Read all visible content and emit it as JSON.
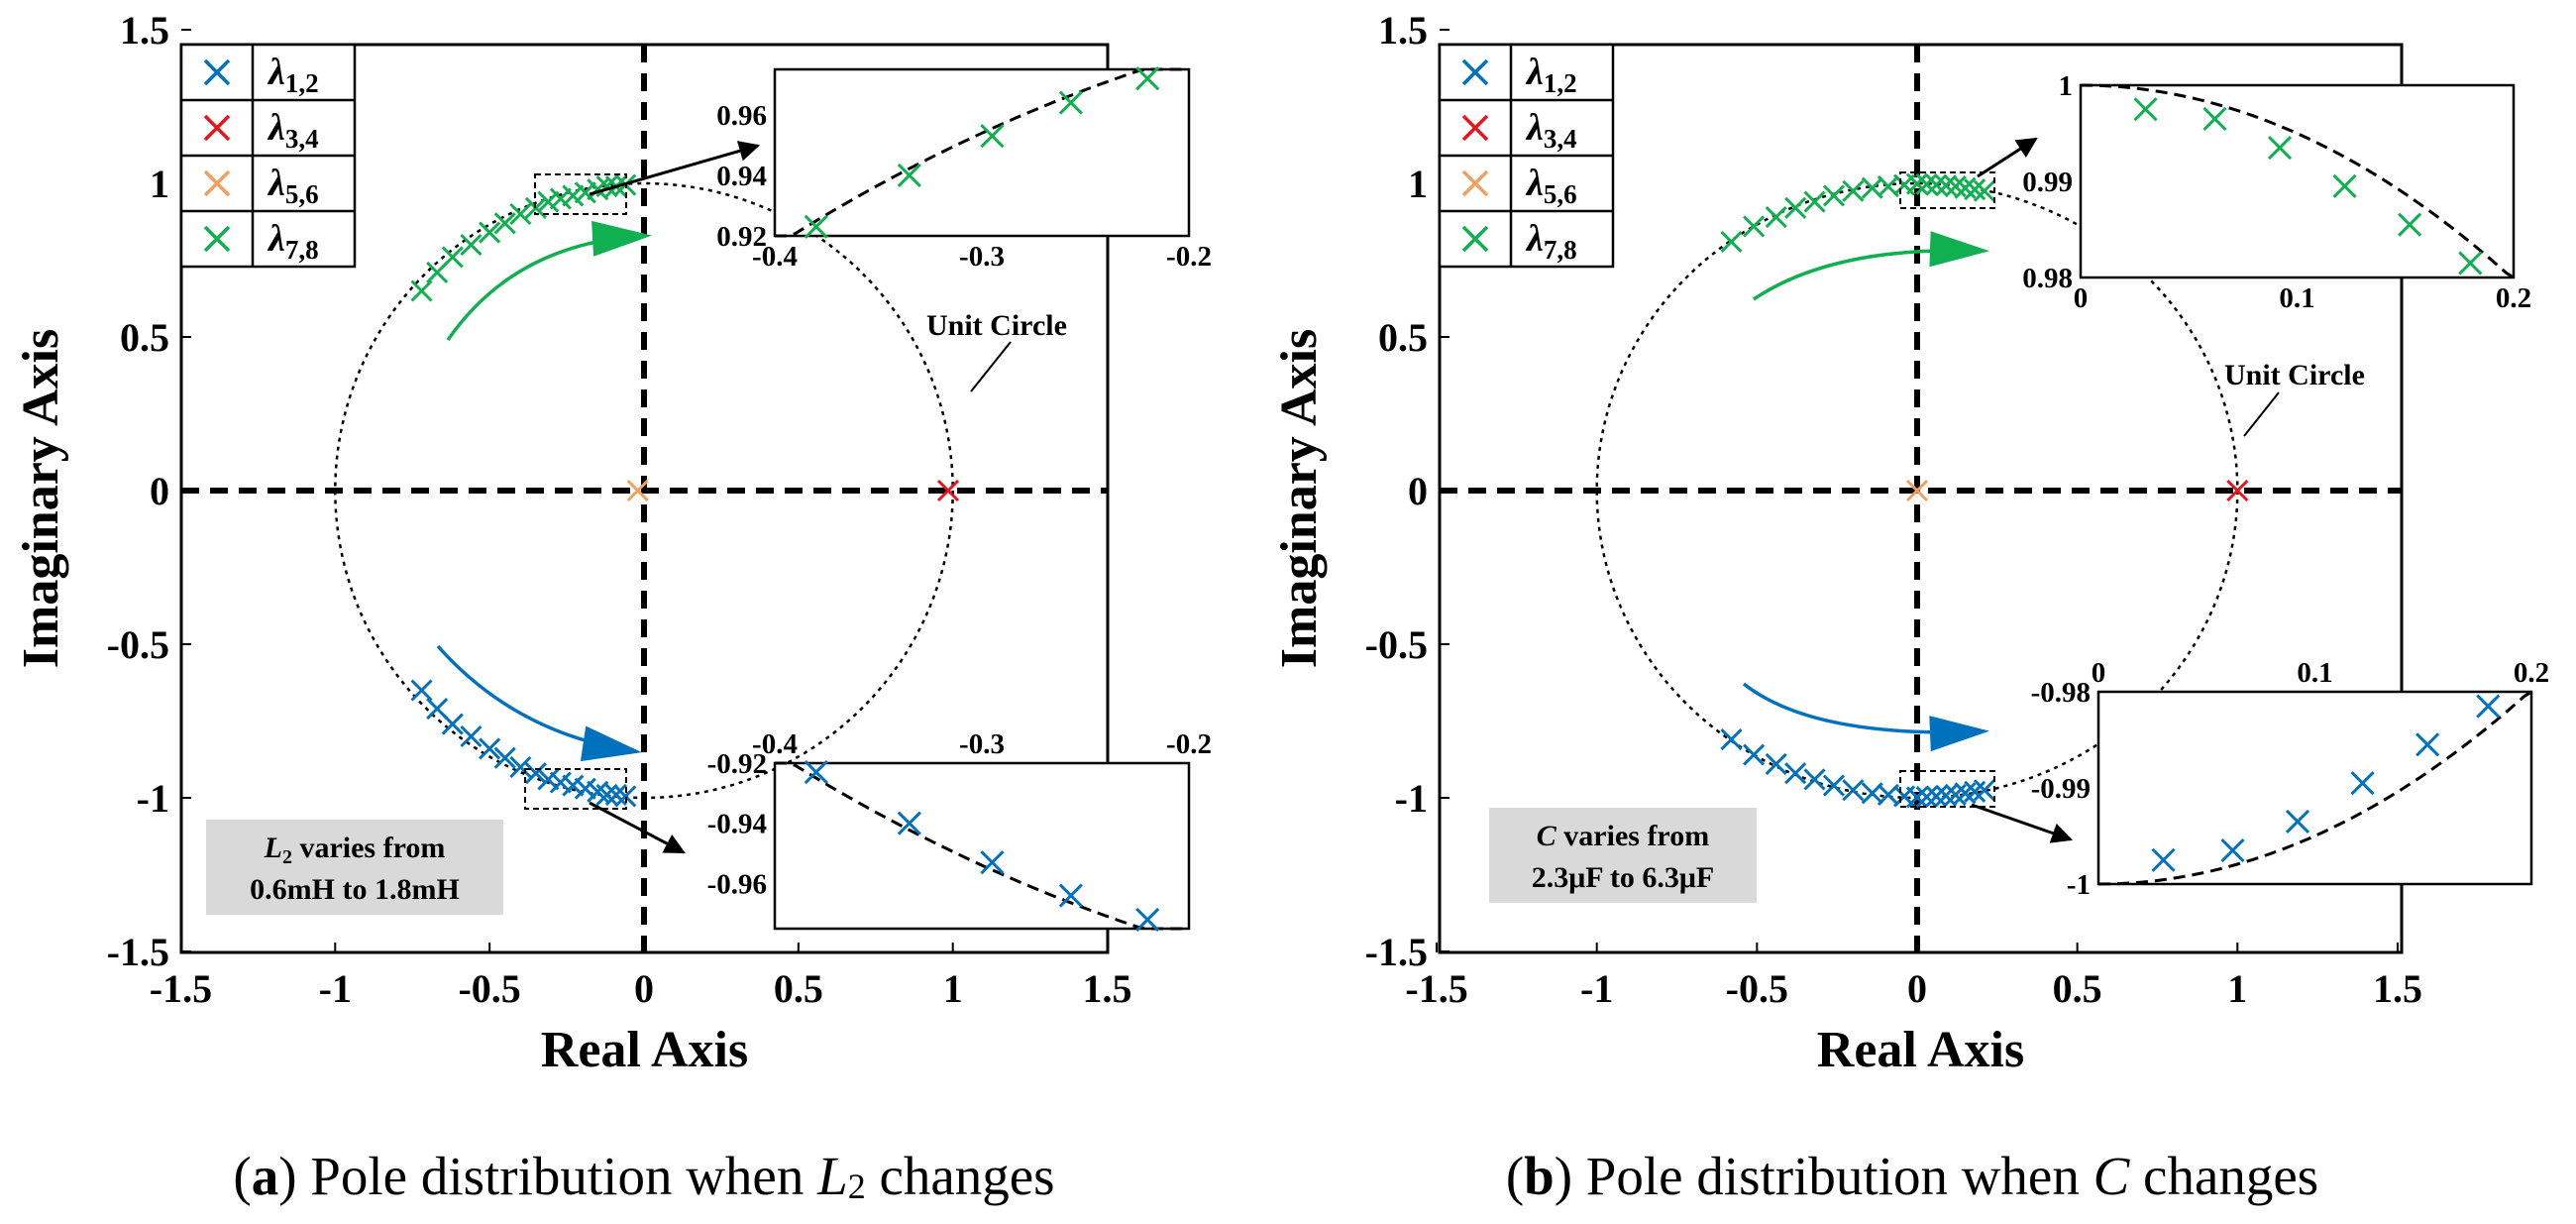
{
  "chart_data": [
    {
      "type": "scatter",
      "panel": "a",
      "caption_letter": "a",
      "caption_text": "Pole distribution when ",
      "caption_var": "L",
      "caption_var_sub": "2",
      "caption_tail": " changes",
      "xlabel": "Real Axis",
      "ylabel": "Imaginary Axis",
      "xlim": [
        -1.5,
        1.5
      ],
      "ylim": [
        -1.5,
        1.5
      ],
      "xticks": [
        -1.5,
        -1,
        -0.5,
        0,
        0.5,
        1,
        1.5
      ],
      "yticks": [
        -1.5,
        -1,
        -0.5,
        0,
        0.5,
        1,
        1.5
      ],
      "legend": [
        {
          "sym": "λ",
          "sub": "1,2",
          "color": "#0072BD"
        },
        {
          "sym": "λ",
          "sub": "3,4",
          "color": "#E8141B"
        },
        {
          "sym": "λ",
          "sub": "5,6",
          "color": "#F0A060"
        },
        {
          "sym": "λ",
          "sub": "7,8",
          "color": "#10B050"
        }
      ],
      "unit_circle_label": "Unit Circle",
      "note_line1_var": "L",
      "note_line1_sub": "2",
      "note_line1_tail": " varies from",
      "note_line2": "0.6mH to 1.8mH",
      "series": [
        {
          "name": "λ1,2",
          "color": "#0072BD",
          "points": [
            [
              -0.72,
              -0.65
            ],
            [
              -0.67,
              -0.71
            ],
            [
              -0.62,
              -0.76
            ],
            [
              -0.56,
              -0.8
            ],
            [
              -0.5,
              -0.84
            ],
            [
              -0.45,
              -0.87
            ],
            [
              -0.4,
              -0.9
            ],
            [
              -0.35,
              -0.92
            ],
            [
              -0.31,
              -0.94
            ],
            [
              -0.27,
              -0.95
            ],
            [
              -0.23,
              -0.96
            ],
            [
              -0.19,
              -0.97
            ],
            [
              -0.15,
              -0.98
            ],
            [
              -0.12,
              -0.99
            ],
            [
              -0.09,
              -0.99
            ],
            [
              -0.06,
              -0.995
            ]
          ]
        },
        {
          "name": "λ3,4",
          "color": "#E8141B",
          "points": [
            [
              0.985,
              0.0
            ]
          ]
        },
        {
          "name": "λ5,6",
          "color": "#F0A060",
          "points": [
            [
              -0.02,
              0.0
            ]
          ]
        },
        {
          "name": "λ7,8",
          "color": "#10B050",
          "points": [
            [
              -0.72,
              0.65
            ],
            [
              -0.67,
              0.71
            ],
            [
              -0.62,
              0.76
            ],
            [
              -0.56,
              0.8
            ],
            [
              -0.5,
              0.84
            ],
            [
              -0.45,
              0.87
            ],
            [
              -0.4,
              0.9
            ],
            [
              -0.35,
              0.92
            ],
            [
              -0.31,
              0.94
            ],
            [
              -0.27,
              0.95
            ],
            [
              -0.23,
              0.96
            ],
            [
              -0.19,
              0.97
            ],
            [
              -0.15,
              0.98
            ],
            [
              -0.12,
              0.99
            ],
            [
              -0.09,
              0.99
            ],
            [
              -0.06,
              0.995
            ]
          ]
        }
      ],
      "insets": [
        {
          "name": "inset-top",
          "xlim": [
            -0.4,
            -0.2
          ],
          "ylim": [
            0.92,
            0.975
          ],
          "xticks": [
            -0.4,
            -0.3,
            -0.2
          ],
          "yticks": [
            0.92,
            0.94,
            0.96
          ],
          "xtick_side": "bottom",
          "color": "#10B050",
          "curve": "upper",
          "points": [
            [
              -0.38,
              0.923
            ],
            [
              -0.335,
              0.94
            ],
            [
              -0.295,
              0.953
            ],
            [
              -0.257,
              0.964
            ],
            [
              -0.22,
              0.972
            ]
          ]
        },
        {
          "name": "inset-bottom",
          "xlim": [
            -0.4,
            -0.2
          ],
          "ylim": [
            -0.975,
            -0.92
          ],
          "xticks": [
            -0.4,
            -0.3,
            -0.2
          ],
          "yticks": [
            -0.92,
            -0.94,
            -0.96
          ],
          "xtick_side": "top",
          "color": "#0072BD",
          "curve": "lower",
          "points": [
            [
              -0.38,
              -0.923
            ],
            [
              -0.335,
              -0.94
            ],
            [
              -0.295,
              -0.953
            ],
            [
              -0.257,
              -0.964
            ],
            [
              -0.22,
              -0.972
            ]
          ]
        }
      ]
    },
    {
      "type": "scatter",
      "panel": "b",
      "caption_letter": "b",
      "caption_text": "Pole distribution when ",
      "caption_var": "C",
      "caption_var_sub": "",
      "caption_tail": " changes",
      "xlabel": "Real Axis",
      "ylabel": "Imaginary Axis",
      "xlim": [
        -1.5,
        1.5
      ],
      "ylim": [
        -1.5,
        1.5
      ],
      "xticks": [
        -1.5,
        -1,
        -0.5,
        0,
        0.5,
        1,
        1.5
      ],
      "yticks": [
        -1.5,
        -1,
        -0.5,
        0,
        0.5,
        1,
        1.5
      ],
      "legend": [
        {
          "sym": "λ",
          "sub": "1,2",
          "color": "#0072BD"
        },
        {
          "sym": "λ",
          "sub": "3,4",
          "color": "#E8141B"
        },
        {
          "sym": "λ",
          "sub": "5,6",
          "color": "#F0A060"
        },
        {
          "sym": "λ",
          "sub": "7,8",
          "color": "#10B050"
        }
      ],
      "unit_circle_label": "Unit Circle",
      "note_line1_var": "C",
      "note_line1_sub": "",
      "note_line1_tail": " varies from",
      "note_line2": "2.3μF to 6.3μF",
      "series": [
        {
          "name": "λ1,2",
          "color": "#0072BD",
          "points": [
            [
              -0.58,
              -0.81
            ],
            [
              -0.51,
              -0.86
            ],
            [
              -0.44,
              -0.89
            ],
            [
              -0.38,
              -0.92
            ],
            [
              -0.32,
              -0.94
            ],
            [
              -0.26,
              -0.96
            ],
            [
              -0.2,
              -0.975
            ],
            [
              -0.14,
              -0.985
            ],
            [
              -0.09,
              -0.99
            ],
            [
              -0.04,
              -0.995
            ],
            [
              0.0,
              -0.998
            ],
            [
              0.03,
              -0.997
            ],
            [
              0.06,
              -0.995
            ],
            [
              0.09,
              -0.993
            ],
            [
              0.12,
              -0.99
            ],
            [
              0.15,
              -0.985
            ],
            [
              0.18,
              -0.98
            ],
            [
              0.21,
              -0.975
            ]
          ]
        },
        {
          "name": "λ3,4",
          "color": "#E8141B",
          "points": [
            [
              1.0,
              0.0
            ]
          ]
        },
        {
          "name": "λ5,6",
          "color": "#F0A060",
          "points": [
            [
              0.0,
              0.0
            ]
          ]
        },
        {
          "name": "λ7,8",
          "color": "#10B050",
          "points": [
            [
              -0.58,
              0.81
            ],
            [
              -0.51,
              0.86
            ],
            [
              -0.44,
              0.89
            ],
            [
              -0.38,
              0.92
            ],
            [
              -0.32,
              0.94
            ],
            [
              -0.26,
              0.96
            ],
            [
              -0.2,
              0.975
            ],
            [
              -0.14,
              0.985
            ],
            [
              -0.09,
              0.99
            ],
            [
              -0.04,
              0.995
            ],
            [
              0.0,
              0.998
            ],
            [
              0.03,
              0.997
            ],
            [
              0.06,
              0.995
            ],
            [
              0.09,
              0.993
            ],
            [
              0.12,
              0.99
            ],
            [
              0.15,
              0.985
            ],
            [
              0.18,
              0.98
            ],
            [
              0.21,
              0.975
            ]
          ]
        }
      ],
      "insets": [
        {
          "name": "inset-top",
          "xlim": [
            0,
            0.2
          ],
          "ylim": [
            0.98,
            1.0
          ],
          "xticks": [
            0,
            0.1,
            0.2
          ],
          "yticks": [
            1,
            0.99,
            0.98
          ],
          "xtick_side": "bottom",
          "color": "#10B050",
          "curve": "upper",
          "points": [
            [
              0.03,
              0.9975
            ],
            [
              0.062,
              0.9965
            ],
            [
              0.092,
              0.9935
            ],
            [
              0.122,
              0.9895
            ],
            [
              0.152,
              0.9855
            ],
            [
              0.18,
              0.9815
            ]
          ]
        },
        {
          "name": "inset-bottom",
          "xlim": [
            0,
            0.2
          ],
          "ylim": [
            -1.0,
            -0.98
          ],
          "xticks": [
            0,
            0.1,
            0.2
          ],
          "yticks": [
            -0.98,
            -0.99,
            -1
          ],
          "xtick_side": "top",
          "color": "#0072BD",
          "curve": "lower",
          "points": [
            [
              0.03,
              -0.9975
            ],
            [
              0.062,
              -0.9965
            ],
            [
              0.092,
              -0.9935
            ],
            [
              0.122,
              -0.9895
            ],
            [
              0.152,
              -0.9855
            ],
            [
              0.18,
              -0.9815
            ]
          ]
        }
      ]
    }
  ]
}
